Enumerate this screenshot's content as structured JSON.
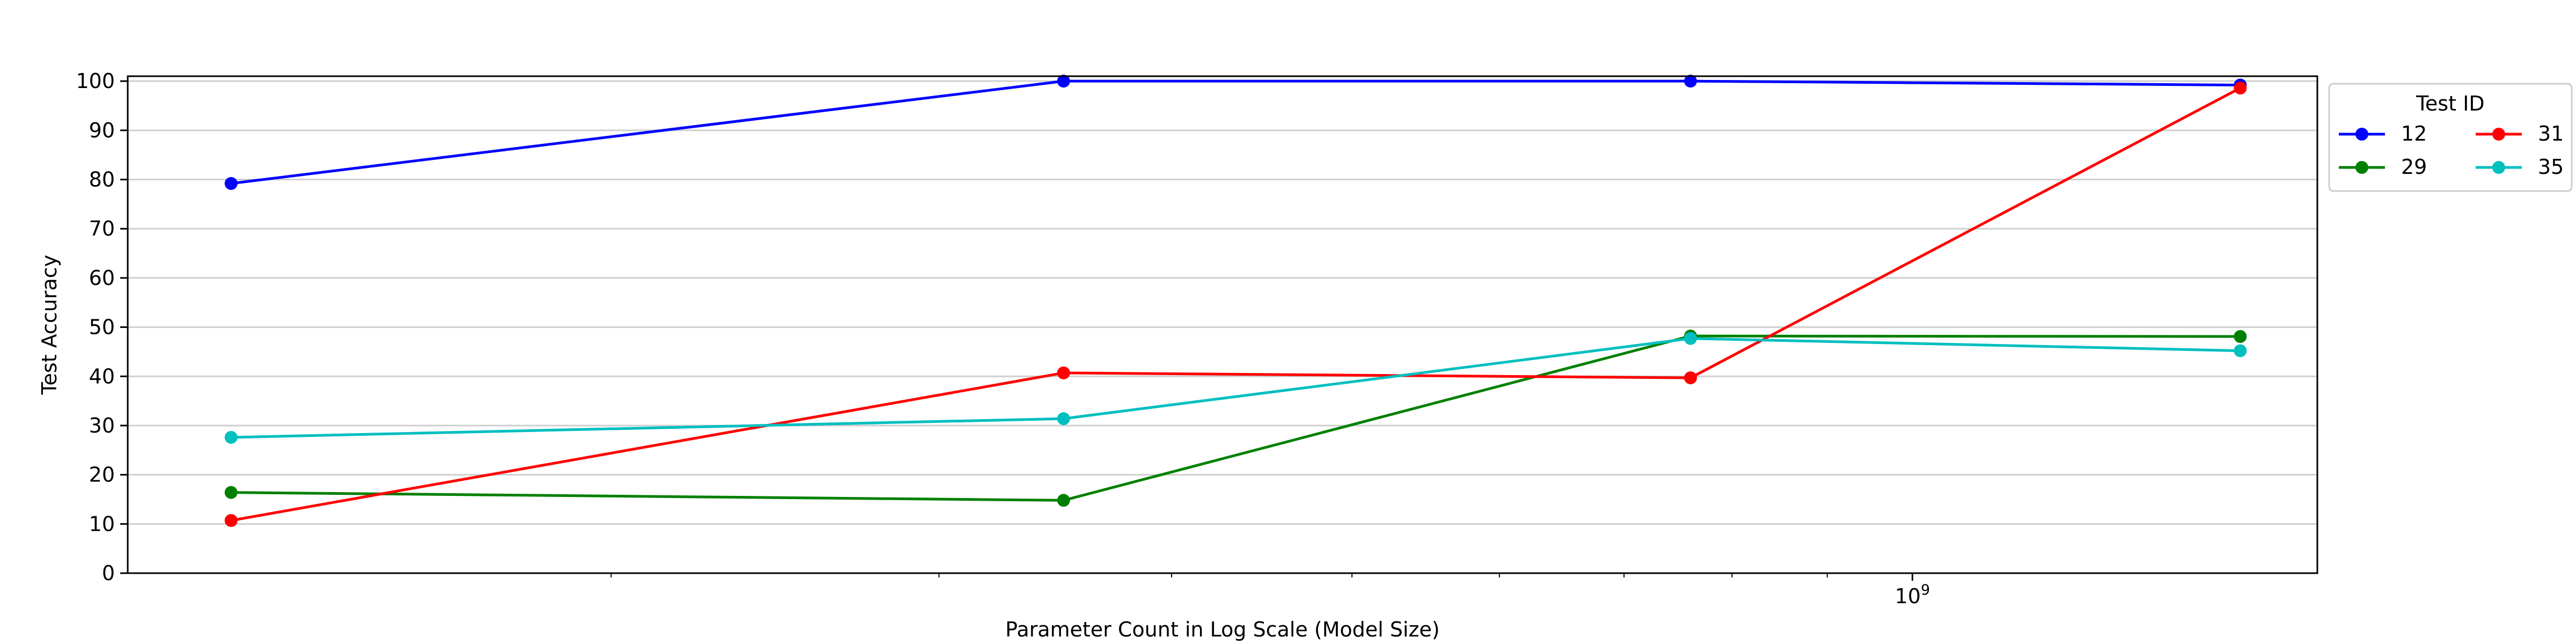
{
  "chart_data": {
    "type": "line",
    "title": "",
    "xlabel": "Parameter Count in Log Scale (Model Size)",
    "ylabel": "Test Accuracy",
    "x_scale": "log",
    "x": [
      125000000,
      350000000,
      760000000,
      1500000000
    ],
    "xlim": [
      110000000,
      1650000000
    ],
    "x_tick_label": "10^9",
    "ylim": [
      0,
      101
    ],
    "yticks": [
      0,
      10,
      20,
      30,
      40,
      50,
      60,
      70,
      80,
      90,
      100
    ],
    "grid": "horizontal",
    "legend": {
      "title": "Test ID",
      "placement": "outside-right",
      "columns": 2
    },
    "series": [
      {
        "name": "12",
        "color": "#0000ff",
        "values": [
          79.2,
          100.0,
          100.0,
          99.2
        ]
      },
      {
        "name": "29",
        "color": "#008000",
        "values": [
          16.4,
          14.8,
          48.2,
          48.1
        ]
      },
      {
        "name": "31",
        "color": "#ff0000",
        "values": [
          10.7,
          40.7,
          39.7,
          98.6
        ]
      },
      {
        "name": "35",
        "color": "#00bfbf",
        "values": [
          27.6,
          31.4,
          47.7,
          45.2
        ]
      }
    ]
  }
}
